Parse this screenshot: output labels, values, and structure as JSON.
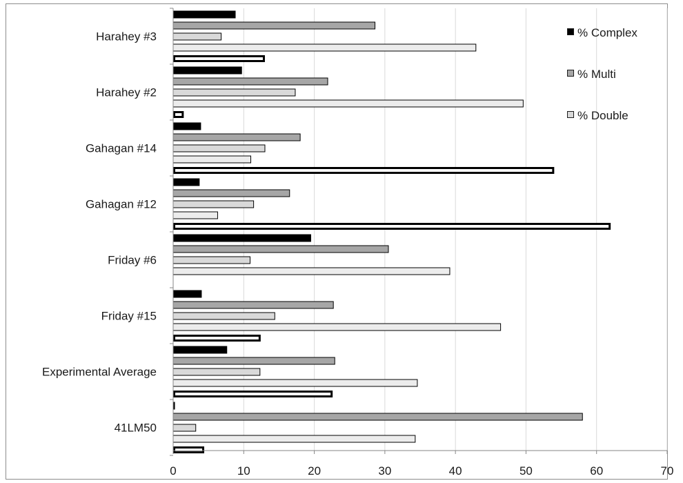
{
  "chart_data": {
    "type": "bar",
    "orientation": "horizontal",
    "categories": [
      "Harahey #3",
      "Harahey #2",
      "Gahagan #14",
      "Gahagan #12",
      "Friday #6",
      "Friday #15",
      "Experimental Average",
      "41LM50"
    ],
    "series": [
      {
        "name": "% Complex",
        "color": "#000000",
        "values": [
          8.8,
          9.7,
          3.9,
          3.7,
          19.5,
          4.0,
          7.6,
          0.2
        ]
      },
      {
        "name": "% Multi",
        "color": "#a6a6a6",
        "values": [
          28.6,
          21.9,
          18.0,
          16.5,
          30.5,
          22.7,
          22.9,
          58.0
        ]
      },
      {
        "name": "% Double",
        "color": "#d9d9d9",
        "values": [
          6.8,
          17.3,
          13.0,
          11.4,
          10.9,
          14.4,
          12.3,
          3.2
        ]
      },
      {
        "color": "#ececec",
        "values": [
          42.9,
          49.6,
          11.0,
          6.3,
          39.2,
          46.4,
          34.6,
          34.3
        ]
      },
      {
        "color": "#ffffff",
        "values": [
          13.0,
          1.5,
          54.0,
          62.0,
          0,
          12.4,
          22.6,
          4.4
        ]
      }
    ],
    "xlim": [
      0,
      70
    ],
    "x_ticks": [
      0,
      10,
      20,
      30,
      40,
      50,
      60,
      70
    ],
    "grid": "vertical",
    "legend": "top-right"
  },
  "legend": {
    "items": [
      {
        "label": "% Complex",
        "color": "#000000"
      },
      {
        "label": "% Multi",
        "color": "#a6a6a6"
      },
      {
        "label": "% Double",
        "color": "#d9d9d9"
      }
    ]
  }
}
